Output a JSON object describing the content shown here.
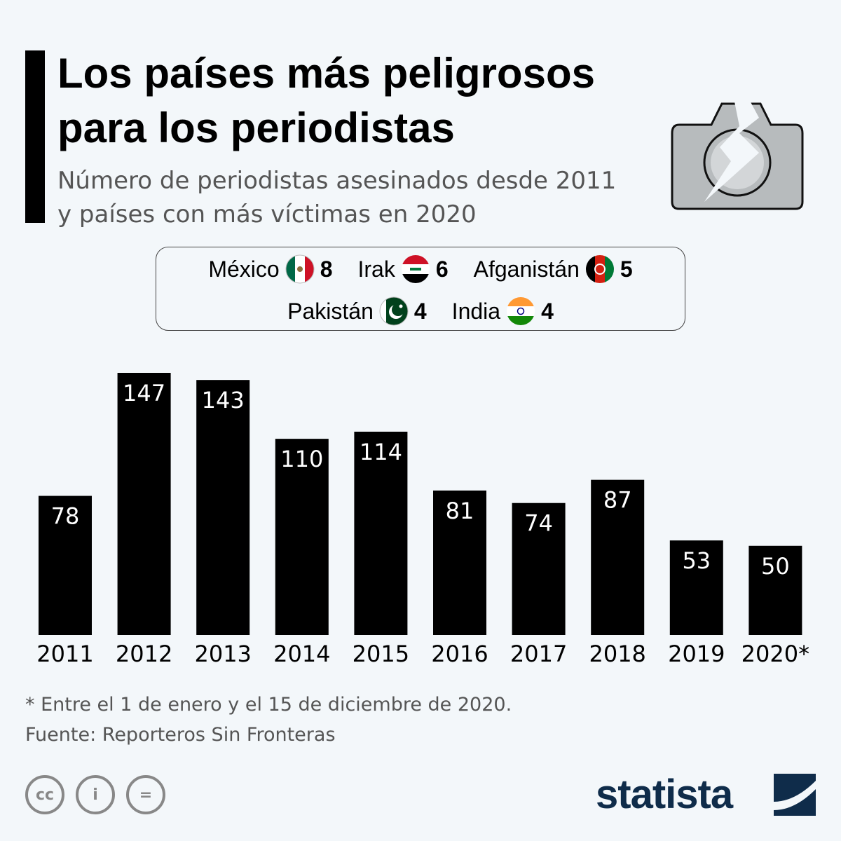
{
  "title": "Los países más peligrosos para los periodistas",
  "subtitle": "Número de periodistas asesinados desde 2011 y países con más víctimas en 2020",
  "legend": [
    {
      "country": "México",
      "value": "8",
      "flag": "mexico-flag"
    },
    {
      "country": "Irak",
      "value": "6",
      "flag": "iraq-flag"
    },
    {
      "country": "Afganistán",
      "value": "5",
      "flag": "afghanistan-flag"
    },
    {
      "country": "Pakistán",
      "value": "4",
      "flag": "pakistan-flag"
    },
    {
      "country": "India",
      "value": "4",
      "flag": "india-flag"
    }
  ],
  "chart_data": {
    "type": "bar",
    "title": "Los países más peligrosos para los periodistas",
    "categories": [
      "2011",
      "2012",
      "2013",
      "2014",
      "2015",
      "2016",
      "2017",
      "2018",
      "2019",
      "2020*"
    ],
    "values": [
      78,
      147,
      143,
      110,
      114,
      81,
      74,
      87,
      53,
      50
    ],
    "xlabel": "",
    "ylabel": "Número de periodistas asesinados",
    "ylim": [
      0,
      147
    ],
    "grid": false,
    "bar_color": "#000000"
  },
  "footnote": "* Entre el 1 de enero y el 15 de diciembre de 2020.",
  "source": "Fuente: Reporteros Sin Fronteras",
  "brand": "statista",
  "license_icons": [
    "cc-icon",
    "by-icon",
    "nd-icon"
  ],
  "license_labels": {
    "cc": "cc",
    "by": "i",
    "nd": "="
  }
}
